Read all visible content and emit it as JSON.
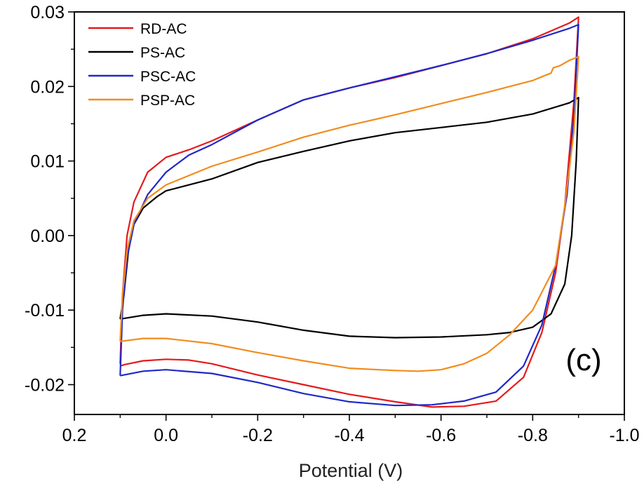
{
  "chart_data": {
    "type": "line",
    "title": "",
    "xlabel": "Potential (V)",
    "ylabel": "",
    "panel_label": "(c)",
    "x_reversed": true,
    "xlim": [
      0.2,
      -1.0
    ],
    "ylim": [
      -0.024,
      0.03
    ],
    "x_ticks": [
      0.2,
      0.0,
      -0.2,
      -0.4,
      -0.6,
      -0.8,
      -1.0
    ],
    "x_tick_labels": [
      "0.2",
      "0.0",
      "-0.2",
      "-0.4",
      "-0.6",
      "-0.8",
      "-1.0"
    ],
    "y_ticks": [
      0.03,
      0.02,
      0.01,
      0.0,
      -0.01,
      -0.02
    ],
    "y_tick_labels": [
      "0.03",
      "0.02",
      "0.01",
      "0.00",
      "-0.01",
      "-0.02"
    ],
    "legend_position": "top-left",
    "series": [
      {
        "name": "RD-AC",
        "color": "#e41a1c",
        "points": [
          [
            0.1,
            -0.0172
          ],
          [
            0.095,
            -0.008
          ],
          [
            0.085,
            0.0
          ],
          [
            0.07,
            0.0045
          ],
          [
            0.04,
            0.0085
          ],
          [
            0.0,
            0.0105
          ],
          [
            -0.05,
            0.0115
          ],
          [
            -0.1,
            0.0127
          ],
          [
            -0.2,
            0.0155
          ],
          [
            -0.3,
            0.0182
          ],
          [
            -0.4,
            0.0198
          ],
          [
            -0.5,
            0.0212
          ],
          [
            -0.6,
            0.0228
          ],
          [
            -0.7,
            0.0244
          ],
          [
            -0.8,
            0.0264
          ],
          [
            -0.88,
            0.0285
          ],
          [
            -0.9,
            0.0293
          ],
          [
            -0.89,
            0.018
          ],
          [
            -0.87,
            0.004
          ],
          [
            -0.85,
            -0.005
          ],
          [
            -0.82,
            -0.013
          ],
          [
            -0.78,
            -0.019
          ],
          [
            -0.72,
            -0.0222
          ],
          [
            -0.65,
            -0.0229
          ],
          [
            -0.58,
            -0.023
          ],
          [
            -0.5,
            -0.0223
          ],
          [
            -0.4,
            -0.0213
          ],
          [
            -0.3,
            -0.02
          ],
          [
            -0.2,
            -0.0187
          ],
          [
            -0.1,
            -0.0172
          ],
          [
            -0.05,
            -0.0167
          ],
          [
            0.0,
            -0.0166
          ],
          [
            0.05,
            -0.0168
          ],
          [
            0.09,
            -0.0173
          ],
          [
            0.1,
            -0.0175
          ]
        ]
      },
      {
        "name": "PS-AC",
        "color": "#000000",
        "points": [
          [
            0.1,
            -0.0112
          ],
          [
            0.092,
            -0.008
          ],
          [
            0.082,
            -0.002
          ],
          [
            0.07,
            0.0015
          ],
          [
            0.05,
            0.0037
          ],
          [
            0.02,
            0.0052
          ],
          [
            0.0,
            0.006
          ],
          [
            -0.1,
            0.0076
          ],
          [
            -0.2,
            0.0098
          ],
          [
            -0.3,
            0.0113
          ],
          [
            -0.4,
            0.0127
          ],
          [
            -0.5,
            0.0138
          ],
          [
            -0.6,
            0.0145
          ],
          [
            -0.7,
            0.0152
          ],
          [
            -0.8,
            0.0163
          ],
          [
            -0.88,
            0.0178
          ],
          [
            -0.9,
            0.0185
          ],
          [
            -0.895,
            0.01
          ],
          [
            -0.885,
            0.0
          ],
          [
            -0.87,
            -0.0065
          ],
          [
            -0.84,
            -0.0105
          ],
          [
            -0.8,
            -0.0123
          ],
          [
            -0.75,
            -0.013
          ],
          [
            -0.7,
            -0.0133
          ],
          [
            -0.6,
            -0.0136
          ],
          [
            -0.5,
            -0.0137
          ],
          [
            -0.4,
            -0.0135
          ],
          [
            -0.3,
            -0.0127
          ],
          [
            -0.2,
            -0.0116
          ],
          [
            -0.1,
            -0.0108
          ],
          [
            0.0,
            -0.0105
          ],
          [
            0.05,
            -0.0107
          ],
          [
            0.1,
            -0.0112
          ]
        ]
      },
      {
        "name": "PSC-AC",
        "color": "#1f28c8",
        "points": [
          [
            0.1,
            -0.0188
          ],
          [
            0.095,
            -0.01
          ],
          [
            0.085,
            -0.003
          ],
          [
            0.07,
            0.0015
          ],
          [
            0.04,
            0.0055
          ],
          [
            0.0,
            0.0085
          ],
          [
            -0.05,
            0.0108
          ],
          [
            -0.1,
            0.0122
          ],
          [
            -0.2,
            0.0155
          ],
          [
            -0.3,
            0.0182
          ],
          [
            -0.4,
            0.0198
          ],
          [
            -0.5,
            0.0213
          ],
          [
            -0.6,
            0.0228
          ],
          [
            -0.7,
            0.0244
          ],
          [
            -0.8,
            0.0262
          ],
          [
            -0.88,
            0.0278
          ],
          [
            -0.9,
            0.0283
          ],
          [
            -0.89,
            0.016
          ],
          [
            -0.875,
            0.0055
          ],
          [
            -0.85,
            -0.004
          ],
          [
            -0.82,
            -0.012
          ],
          [
            -0.78,
            -0.0175
          ],
          [
            -0.72,
            -0.021
          ],
          [
            -0.65,
            -0.0222
          ],
          [
            -0.58,
            -0.0227
          ],
          [
            -0.5,
            -0.0228
          ],
          [
            -0.4,
            -0.0223
          ],
          [
            -0.3,
            -0.0212
          ],
          [
            -0.2,
            -0.0197
          ],
          [
            -0.1,
            -0.0185
          ],
          [
            0.0,
            -0.018
          ],
          [
            0.05,
            -0.0182
          ],
          [
            0.1,
            -0.0188
          ]
        ]
      },
      {
        "name": "PSP-AC",
        "color": "#f28c1e",
        "points": [
          [
            0.1,
            -0.0142
          ],
          [
            0.095,
            -0.008
          ],
          [
            0.085,
            -0.002
          ],
          [
            0.07,
            0.002
          ],
          [
            0.04,
            0.005
          ],
          [
            0.0,
            0.0068
          ],
          [
            -0.1,
            0.0093
          ],
          [
            -0.2,
            0.0112
          ],
          [
            -0.3,
            0.0132
          ],
          [
            -0.4,
            0.0148
          ],
          [
            -0.5,
            0.0162
          ],
          [
            -0.6,
            0.0177
          ],
          [
            -0.7,
            0.0192
          ],
          [
            -0.8,
            0.0208
          ],
          [
            -0.84,
            0.0218
          ],
          [
            -0.845,
            0.0225
          ],
          [
            -0.86,
            0.0228
          ],
          [
            -0.88,
            0.0235
          ],
          [
            -0.9,
            0.024
          ],
          [
            -0.89,
            0.014
          ],
          [
            -0.87,
            0.004
          ],
          [
            -0.85,
            -0.004
          ],
          [
            -0.8,
            -0.01
          ],
          [
            -0.75,
            -0.0133
          ],
          [
            -0.7,
            -0.0158
          ],
          [
            -0.65,
            -0.0172
          ],
          [
            -0.6,
            -0.018
          ],
          [
            -0.55,
            -0.0182
          ],
          [
            -0.5,
            -0.0181
          ],
          [
            -0.4,
            -0.0178
          ],
          [
            -0.3,
            -0.0168
          ],
          [
            -0.2,
            -0.0157
          ],
          [
            -0.1,
            -0.0145
          ],
          [
            0.0,
            -0.0138
          ],
          [
            0.05,
            -0.0138
          ],
          [
            0.1,
            -0.0142
          ]
        ]
      }
    ]
  }
}
